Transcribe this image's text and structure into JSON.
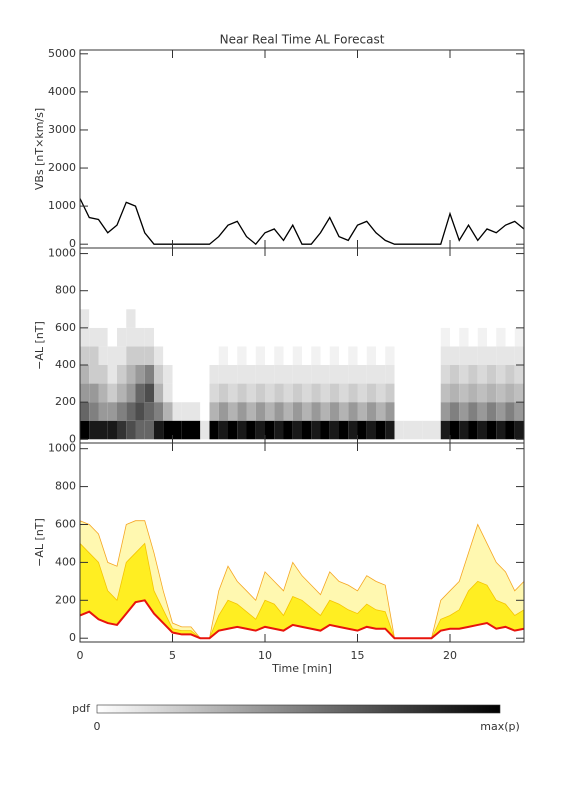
{
  "chart_data": [
    {
      "type": "line",
      "title": "Near Real Time AL Forecast",
      "ylabel": "VBs [nT×km/s]",
      "x": [
        0,
        0.5,
        1,
        1.5,
        2,
        2.5,
        3,
        3.5,
        4,
        4.5,
        5,
        5.5,
        6,
        6.5,
        7,
        7.5,
        8,
        8.5,
        9,
        9.5,
        10,
        10.5,
        11,
        11.5,
        12,
        12.5,
        13,
        13.5,
        14,
        14.5,
        15,
        15.5,
        16,
        16.5,
        17,
        17.5,
        18,
        18.5,
        19,
        19.5,
        20,
        20.5,
        21,
        21.5,
        22,
        22.5,
        23,
        23.5,
        24
      ],
      "xlim": [
        0,
        24
      ],
      "xticks": [
        0,
        5,
        10,
        15,
        20
      ],
      "ylim": [
        -100,
        5100
      ],
      "yticks": [
        0,
        1000,
        2000,
        3000,
        4000,
        5000
      ],
      "series": [
        {
          "color": "#000000",
          "values": [
            1200,
            700,
            650,
            300,
            500,
            1100,
            1000,
            300,
            0,
            0,
            0,
            0,
            0,
            0,
            0,
            200,
            500,
            600,
            200,
            0,
            300,
            400,
            100,
            500,
            0,
            0,
            300,
            700,
            200,
            100,
            500,
            600,
            300,
            100,
            0,
            0,
            0,
            0,
            0,
            0,
            800,
            100,
            500,
            100,
            400,
            300,
            500,
            600,
            400
          ]
        }
      ]
    },
    {
      "type": "heatmap",
      "ylabel": "−AL [nT]",
      "x": [
        0,
        0.5,
        1,
        1.5,
        2,
        2.5,
        3,
        3.5,
        4,
        4.5,
        5,
        5.5,
        6,
        6.5,
        7,
        7.5,
        8,
        8.5,
        9,
        9.5,
        10,
        10.5,
        11,
        11.5,
        12,
        12.5,
        13,
        13.5,
        14,
        14.5,
        15,
        15.5,
        16,
        16.5,
        17,
        17.5,
        18,
        18.5,
        19,
        19.5,
        20,
        20.5,
        21,
        21.5,
        22,
        22.5,
        23,
        23.5,
        24
      ],
      "y_bins": [
        0,
        100,
        200,
        300,
        400,
        500,
        600,
        700
      ],
      "xlim": [
        0,
        24
      ],
      "xticks": [
        0,
        5,
        10,
        15,
        20
      ],
      "ylim": [
        -20,
        1030
      ],
      "yticks": [
        0,
        200,
        400,
        600,
        800,
        1000
      ],
      "cells": [
        [
          1,
          0.6,
          0.4,
          0.3,
          0.2,
          0.1,
          0.1
        ],
        [
          0.9,
          0.5,
          0.4,
          0.2,
          0.2,
          0.1,
          0
        ],
        [
          0.9,
          0.4,
          0.3,
          0.2,
          0.1,
          0.1,
          0
        ],
        [
          0.9,
          0.4,
          0.2,
          0.1,
          0.1,
          0,
          0
        ],
        [
          0.8,
          0.5,
          0.3,
          0.2,
          0.1,
          0.1,
          0
        ],
        [
          0.7,
          0.6,
          0.4,
          0.3,
          0.2,
          0.1,
          0.1
        ],
        [
          0.6,
          0.7,
          0.6,
          0.4,
          0.2,
          0.1,
          0
        ],
        [
          0.6,
          0.6,
          0.7,
          0.5,
          0.2,
          0.1,
          0
        ],
        [
          0.9,
          0.5,
          0.3,
          0.2,
          0.1,
          0,
          0
        ],
        [
          1,
          0.3,
          0.1,
          0.1,
          0,
          0,
          0
        ],
        [
          1,
          0.1,
          0,
          0,
          0,
          0,
          0
        ],
        [
          1,
          0.1,
          0,
          0,
          0,
          0,
          0
        ],
        [
          1,
          0.1,
          0,
          0,
          0,
          0,
          0
        ],
        [
          0.1,
          0,
          0,
          0,
          0,
          0,
          0
        ],
        [
          1,
          0.3,
          0.15,
          0.1,
          0,
          0,
          0
        ],
        [
          0.9,
          0.4,
          0.2,
          0.1,
          0.05,
          0,
          0
        ],
        [
          1,
          0.3,
          0.15,
          0.1,
          0,
          0,
          0
        ],
        [
          0.9,
          0.4,
          0.2,
          0.1,
          0.05,
          0,
          0
        ],
        [
          1,
          0.3,
          0.15,
          0.1,
          0,
          0,
          0
        ],
        [
          0.9,
          0.4,
          0.2,
          0.1,
          0.05,
          0,
          0
        ],
        [
          1,
          0.3,
          0.15,
          0.1,
          0,
          0,
          0
        ],
        [
          0.9,
          0.4,
          0.2,
          0.1,
          0.05,
          0,
          0
        ],
        [
          1,
          0.3,
          0.15,
          0.1,
          0,
          0,
          0
        ],
        [
          0.9,
          0.4,
          0.2,
          0.1,
          0.05,
          0,
          0
        ],
        [
          1,
          0.3,
          0.15,
          0.1,
          0,
          0,
          0
        ],
        [
          0.9,
          0.4,
          0.2,
          0.1,
          0.05,
          0,
          0
        ],
        [
          1,
          0.3,
          0.15,
          0.1,
          0,
          0,
          0
        ],
        [
          0.9,
          0.4,
          0.2,
          0.1,
          0.05,
          0,
          0
        ],
        [
          1,
          0.3,
          0.15,
          0.1,
          0,
          0,
          0
        ],
        [
          0.9,
          0.4,
          0.2,
          0.1,
          0.05,
          0,
          0
        ],
        [
          1,
          0.3,
          0.15,
          0.1,
          0,
          0,
          0
        ],
        [
          0.9,
          0.4,
          0.2,
          0.1,
          0.05,
          0,
          0
        ],
        [
          1,
          0.3,
          0.15,
          0.1,
          0,
          0,
          0
        ],
        [
          0.9,
          0.4,
          0.2,
          0.1,
          0.05,
          0,
          0
        ],
        [
          0.1,
          0,
          0,
          0,
          0,
          0,
          0
        ],
        [
          0.1,
          0,
          0,
          0,
          0,
          0,
          0
        ],
        [
          0.1,
          0,
          0,
          0,
          0,
          0,
          0
        ],
        [
          0.1,
          0,
          0,
          0,
          0,
          0,
          0
        ],
        [
          0.1,
          0,
          0,
          0,
          0,
          0,
          0
        ],
        [
          0.9,
          0.4,
          0.25,
          0.15,
          0.1,
          0.05,
          0
        ],
        [
          1,
          0.5,
          0.3,
          0.2,
          0.1,
          0,
          0
        ],
        [
          0.9,
          0.4,
          0.25,
          0.15,
          0.1,
          0.05,
          0
        ],
        [
          1,
          0.5,
          0.3,
          0.2,
          0.1,
          0,
          0
        ],
        [
          0.9,
          0.4,
          0.25,
          0.15,
          0.1,
          0.05,
          0
        ],
        [
          1,
          0.5,
          0.3,
          0.2,
          0.1,
          0,
          0
        ],
        [
          0.9,
          0.4,
          0.25,
          0.15,
          0.1,
          0.05,
          0
        ],
        [
          1,
          0.5,
          0.3,
          0.2,
          0.1,
          0,
          0
        ],
        [
          0.9,
          0.4,
          0.25,
          0.15,
          0.1,
          0.05,
          0
        ]
      ],
      "colorbar": {
        "label": "pdf",
        "min_label": "0",
        "max_label": "max(p)"
      }
    },
    {
      "type": "area",
      "ylabel": "−AL [nT]",
      "xlabel": "Time [min]",
      "x": [
        0,
        0.5,
        1,
        1.5,
        2,
        2.5,
        3,
        3.5,
        4,
        4.5,
        5,
        5.5,
        6,
        6.5,
        7,
        7.5,
        8,
        8.5,
        9,
        9.5,
        10,
        10.5,
        11,
        11.5,
        12,
        12.5,
        13,
        13.5,
        14,
        14.5,
        15,
        15.5,
        16,
        16.5,
        17,
        17.5,
        18,
        18.5,
        19,
        19.5,
        20,
        20.5,
        21,
        21.5,
        22,
        22.5,
        23,
        23.5,
        24
      ],
      "xlim": [
        0,
        24
      ],
      "xticks": [
        0,
        5,
        10,
        15,
        20
      ],
      "ylim": [
        -20,
        1030
      ],
      "yticks": [
        0,
        200,
        400,
        600,
        800,
        1000
      ],
      "series": [
        {
          "color": "#f5a623",
          "fill": "#fff8b0",
          "values": [
            620,
            600,
            550,
            400,
            380,
            600,
            620,
            620,
            450,
            250,
            80,
            60,
            60,
            0,
            0,
            250,
            380,
            300,
            250,
            200,
            350,
            300,
            250,
            400,
            330,
            280,
            230,
            350,
            300,
            280,
            250,
            330,
            300,
            280,
            0,
            0,
            0,
            0,
            0,
            200,
            250,
            300,
            450,
            600,
            500,
            400,
            350,
            250,
            300
          ]
        },
        {
          "color": "#f5c400",
          "fill": "#ffee22",
          "values": [
            500,
            450,
            400,
            250,
            200,
            400,
            450,
            500,
            250,
            150,
            50,
            40,
            40,
            0,
            0,
            120,
            200,
            180,
            140,
            100,
            200,
            180,
            120,
            220,
            200,
            160,
            120,
            200,
            180,
            150,
            130,
            180,
            150,
            140,
            0,
            0,
            0,
            0,
            0,
            100,
            120,
            150,
            250,
            300,
            280,
            200,
            180,
            120,
            150
          ]
        },
        {
          "color": "#e8140c",
          "values": [
            120,
            140,
            100,
            80,
            70,
            130,
            190,
            200,
            130,
            80,
            30,
            20,
            20,
            0,
            0,
            40,
            50,
            60,
            50,
            40,
            60,
            50,
            40,
            70,
            60,
            50,
            40,
            70,
            60,
            50,
            40,
            60,
            50,
            50,
            0,
            0,
            0,
            0,
            0,
            40,
            50,
            50,
            60,
            70,
            80,
            50,
            60,
            40,
            50
          ]
        }
      ]
    }
  ]
}
